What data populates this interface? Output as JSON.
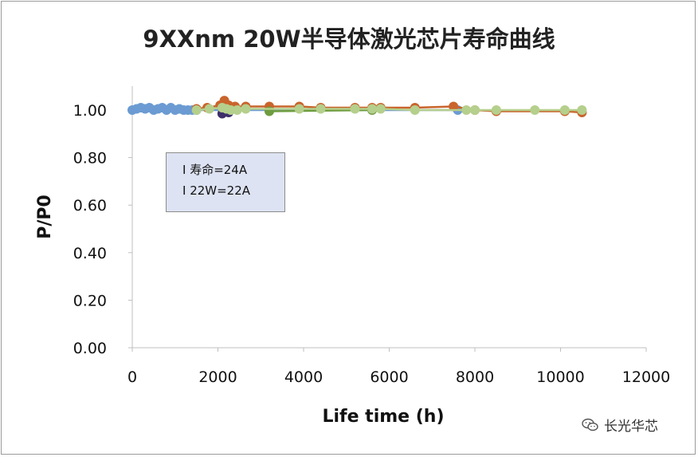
{
  "chart_data": {
    "type": "scatter",
    "title": "9XXnm 20W半导体激光芯片寿命曲线",
    "xlabel": "Life time  (h)",
    "ylabel": "P/P0",
    "xlim": [
      0,
      12000
    ],
    "ylim": [
      0,
      1.1
    ],
    "xticks": [
      "0",
      "2000",
      "4000",
      "6000",
      "8000",
      "10000",
      "12000"
    ],
    "yticks": [
      "0.00",
      "0.20",
      "0.40",
      "0.60",
      "0.80",
      "1.00"
    ],
    "grid": false,
    "annotation_lines": [
      "I 寿命=24A",
      "I 22W=22A"
    ],
    "series": [
      {
        "color": "#6b9bd2",
        "x": [
          0,
          100,
          200,
          300,
          400,
          500,
          600,
          700,
          800,
          900,
          1000,
          1100,
          1200,
          1300,
          1400,
          1500,
          7600
        ],
        "y": [
          1.0,
          1.005,
          1.01,
          1.005,
          1.01,
          1.0,
          1.005,
          1.01,
          1.0,
          1.01,
          1.0,
          1.005,
          1.0,
          1.0,
          1.0,
          1.0,
          1.0
        ]
      },
      {
        "color": "#3d2e6a",
        "x": [
          2100,
          2250
        ],
        "y": [
          0.985,
          0.99
        ]
      },
      {
        "color": "#c9642c",
        "x": [
          1500,
          1750,
          2050,
          2150,
          2250,
          2400,
          2650,
          3200,
          3900,
          4400,
          5200,
          5600,
          5800,
          6600,
          7500,
          8000,
          8500,
          10100,
          10500
        ],
        "y": [
          1.005,
          1.01,
          1.02,
          1.04,
          1.02,
          1.015,
          1.015,
          1.015,
          1.015,
          1.01,
          1.01,
          1.01,
          1.01,
          1.01,
          1.015,
          1.0,
          0.995,
          0.995,
          0.99
        ]
      },
      {
        "color": "#6e9c3f",
        "x": [
          3200,
          5600
        ],
        "y": [
          0.995,
          1.0
        ]
      },
      {
        "color": "#b5cf8c",
        "x": [
          1500,
          1800,
          2100,
          2200,
          2300,
          2450,
          2650,
          3900,
          4400,
          5200,
          5600,
          5800,
          6600,
          7800,
          8000,
          8500,
          9400,
          10100,
          10500
        ],
        "y": [
          1.0,
          1.005,
          1.01,
          1.005,
          1.0,
          1.0,
          1.005,
          1.005,
          1.005,
          1.005,
          1.005,
          1.005,
          1.0,
          1.0,
          1.0,
          1.0,
          1.0,
          1.0,
          1.0
        ]
      }
    ]
  },
  "watermark": {
    "icon": "wechat-icon",
    "text": "长光华芯"
  }
}
